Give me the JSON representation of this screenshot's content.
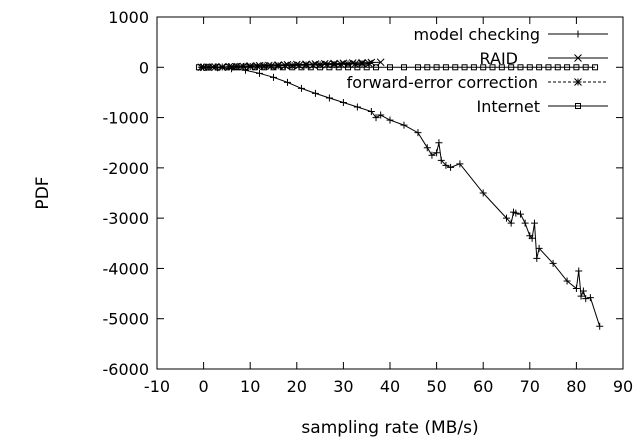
{
  "chart_data": {
    "type": "line",
    "xlabel": "sampling rate (MB/s)",
    "ylabel": "PDF",
    "xlim": [
      -10,
      90
    ],
    "ylim": [
      -6000,
      1000
    ],
    "x_ticks": [
      -10,
      0,
      10,
      20,
      30,
      40,
      50,
      60,
      70,
      80,
      90
    ],
    "y_ticks": [
      1000,
      0,
      -1000,
      -2000,
      -3000,
      -4000,
      -5000,
      -6000
    ],
    "grid": false,
    "legend_position": "top-right",
    "series": [
      {
        "name": "model checking",
        "marker": "plus",
        "color": "#000000",
        "x": [
          0,
          3,
          6,
          9,
          12,
          15,
          18,
          21,
          24,
          27,
          30,
          33,
          36,
          37,
          38,
          40,
          43,
          46,
          48,
          49,
          50,
          50.5,
          51,
          52,
          53,
          55,
          60,
          65,
          66,
          66.5,
          67,
          68,
          69,
          70,
          70.5,
          71,
          71.5,
          72,
          75,
          78,
          80,
          80.5,
          81,
          81.5,
          82,
          83,
          85
        ],
        "y": [
          0,
          -10,
          -30,
          -60,
          -120,
          -200,
          -300,
          -420,
          -520,
          -610,
          -700,
          -790,
          -880,
          -1000,
          -950,
          -1050,
          -1150,
          -1300,
          -1600,
          -1750,
          -1700,
          -1500,
          -1850,
          -1950,
          -1990,
          -1920,
          -2500,
          -3000,
          -3100,
          -2880,
          -2900,
          -2920,
          -3100,
          -3350,
          -3400,
          -3100,
          -3800,
          -3600,
          -3900,
          -4250,
          -4400,
          -4050,
          -4550,
          -4450,
          -4600,
          -4580,
          -5150
        ]
      },
      {
        "name": "RAID",
        "marker": "cross",
        "color": "#000000",
        "x": [
          0,
          2,
          4,
          6,
          8,
          10,
          12,
          14,
          16,
          18,
          20,
          22,
          24,
          26,
          28,
          30,
          32,
          34,
          36,
          38
        ],
        "y": [
          0,
          5,
          0,
          10,
          15,
          25,
          30,
          35,
          45,
          50,
          55,
          60,
          65,
          70,
          75,
          80,
          85,
          90,
          95,
          100
        ]
      },
      {
        "name": "forward-error correction",
        "marker": "star",
        "color": "#000000",
        "x": [
          -0.5,
          1,
          2.5,
          4,
          5.5,
          7,
          8.5,
          10,
          11.5,
          13,
          14.5,
          16,
          17.5,
          19,
          20.5,
          22,
          23.5,
          25,
          26.5,
          28,
          29.5,
          31,
          32.5,
          34,
          35.5
        ],
        "y": [
          0,
          0,
          5,
          5,
          10,
          10,
          15,
          15,
          20,
          25,
          25,
          30,
          35,
          35,
          40,
          45,
          45,
          50,
          55,
          55,
          60,
          65,
          65,
          70,
          75
        ]
      },
      {
        "name": "Internet",
        "marker": "square",
        "color": "#000000",
        "x": [
          -1,
          1,
          3,
          5,
          7,
          9,
          11,
          13,
          15,
          17,
          19,
          21,
          23,
          25,
          27,
          29,
          31,
          33,
          35,
          37,
          40,
          43,
          46,
          48,
          50,
          52,
          54,
          56,
          58,
          60,
          62,
          64,
          66,
          68,
          70,
          72,
          74,
          76,
          78,
          80,
          82,
          84
        ],
        "y": [
          0,
          0,
          0,
          0,
          0,
          0,
          0,
          0,
          0,
          0,
          0,
          0,
          0,
          0,
          0,
          0,
          0,
          0,
          0,
          0,
          0,
          0,
          0,
          0,
          0,
          0,
          0,
          0,
          0,
          0,
          0,
          0,
          0,
          0,
          0,
          0,
          0,
          0,
          0,
          0,
          0,
          0
        ]
      }
    ]
  }
}
